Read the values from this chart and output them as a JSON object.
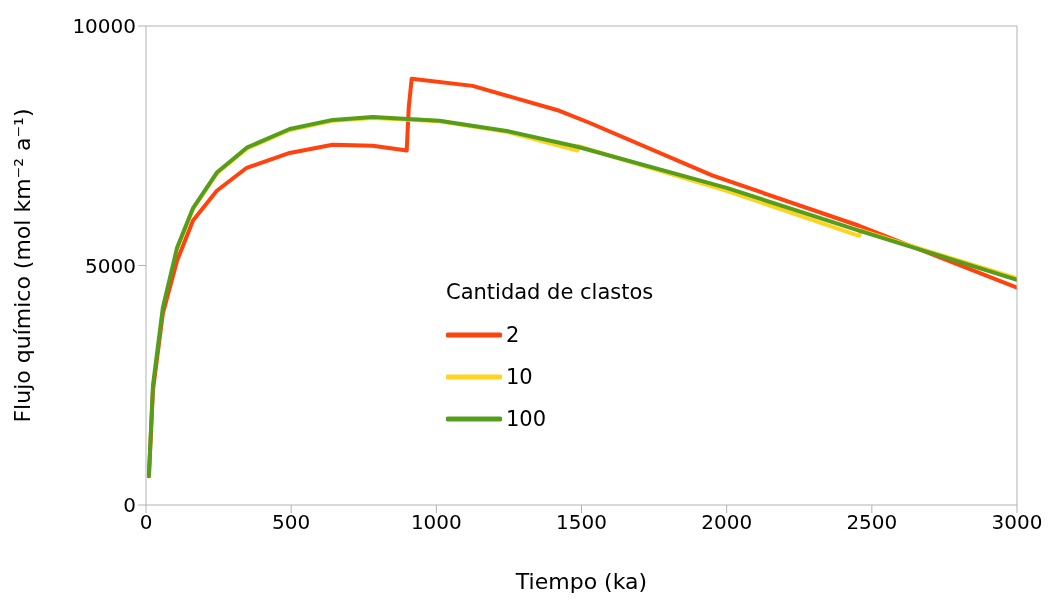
{
  "chart_data": {
    "type": "line",
    "xlabel": "Tiempo (ka)",
    "ylabel": "Flujo químico (mol km⁻² a⁻¹)",
    "legend_title": "Cantidad de clastos",
    "xlim": [
      0,
      3000
    ],
    "xticks": [
      0,
      500,
      1000,
      1500,
      2000,
      2500,
      3000
    ],
    "ylim": [
      0,
      10000
    ],
    "yticks": [
      0,
      5000,
      10000
    ],
    "legend": "center",
    "marker": "none",
    "line_style": "solid",
    "series": [
      {
        "name": "2",
        "color": "#ff420e",
        "x": [
          10,
          24,
          58,
          107,
          162,
          244,
          347,
          495,
          643,
          781,
          898,
          905,
          915,
          1125,
          1424,
          1527,
          1950,
          2456,
          3000
        ],
        "values": [
          600,
          2400,
          4000,
          5100,
          5940,
          6560,
          7040,
          7350,
          7520,
          7500,
          7400,
          8300,
          8900,
          8750,
          8230,
          7980,
          6880,
          5830,
          4540
        ]
      },
      {
        "name": "10",
        "color": "#ffd320",
        "x": [
          107,
          162,
          244,
          347,
          495,
          643,
          781,
          1011,
          1242,
          1486,
          1490,
          2000,
          2456,
          2462,
          3000
        ],
        "values": [
          5350,
          6180,
          6920,
          7440,
          7830,
          8020,
          8080,
          8010,
          7790,
          7400,
          7490,
          6560,
          5620,
          5730,
          4730
        ]
      },
      {
        "name": "100",
        "color": "#579d1c",
        "x": [
          10,
          24,
          58,
          107,
          162,
          244,
          347,
          495,
          643,
          781,
          1011,
          1242,
          1486,
          2000,
          2456,
          3000
        ],
        "values": [
          600,
          2500,
          4120,
          5370,
          6200,
          6940,
          7460,
          7850,
          8040,
          8100,
          8020,
          7810,
          7480,
          6620,
          5730,
          4700
        ]
      }
    ]
  }
}
